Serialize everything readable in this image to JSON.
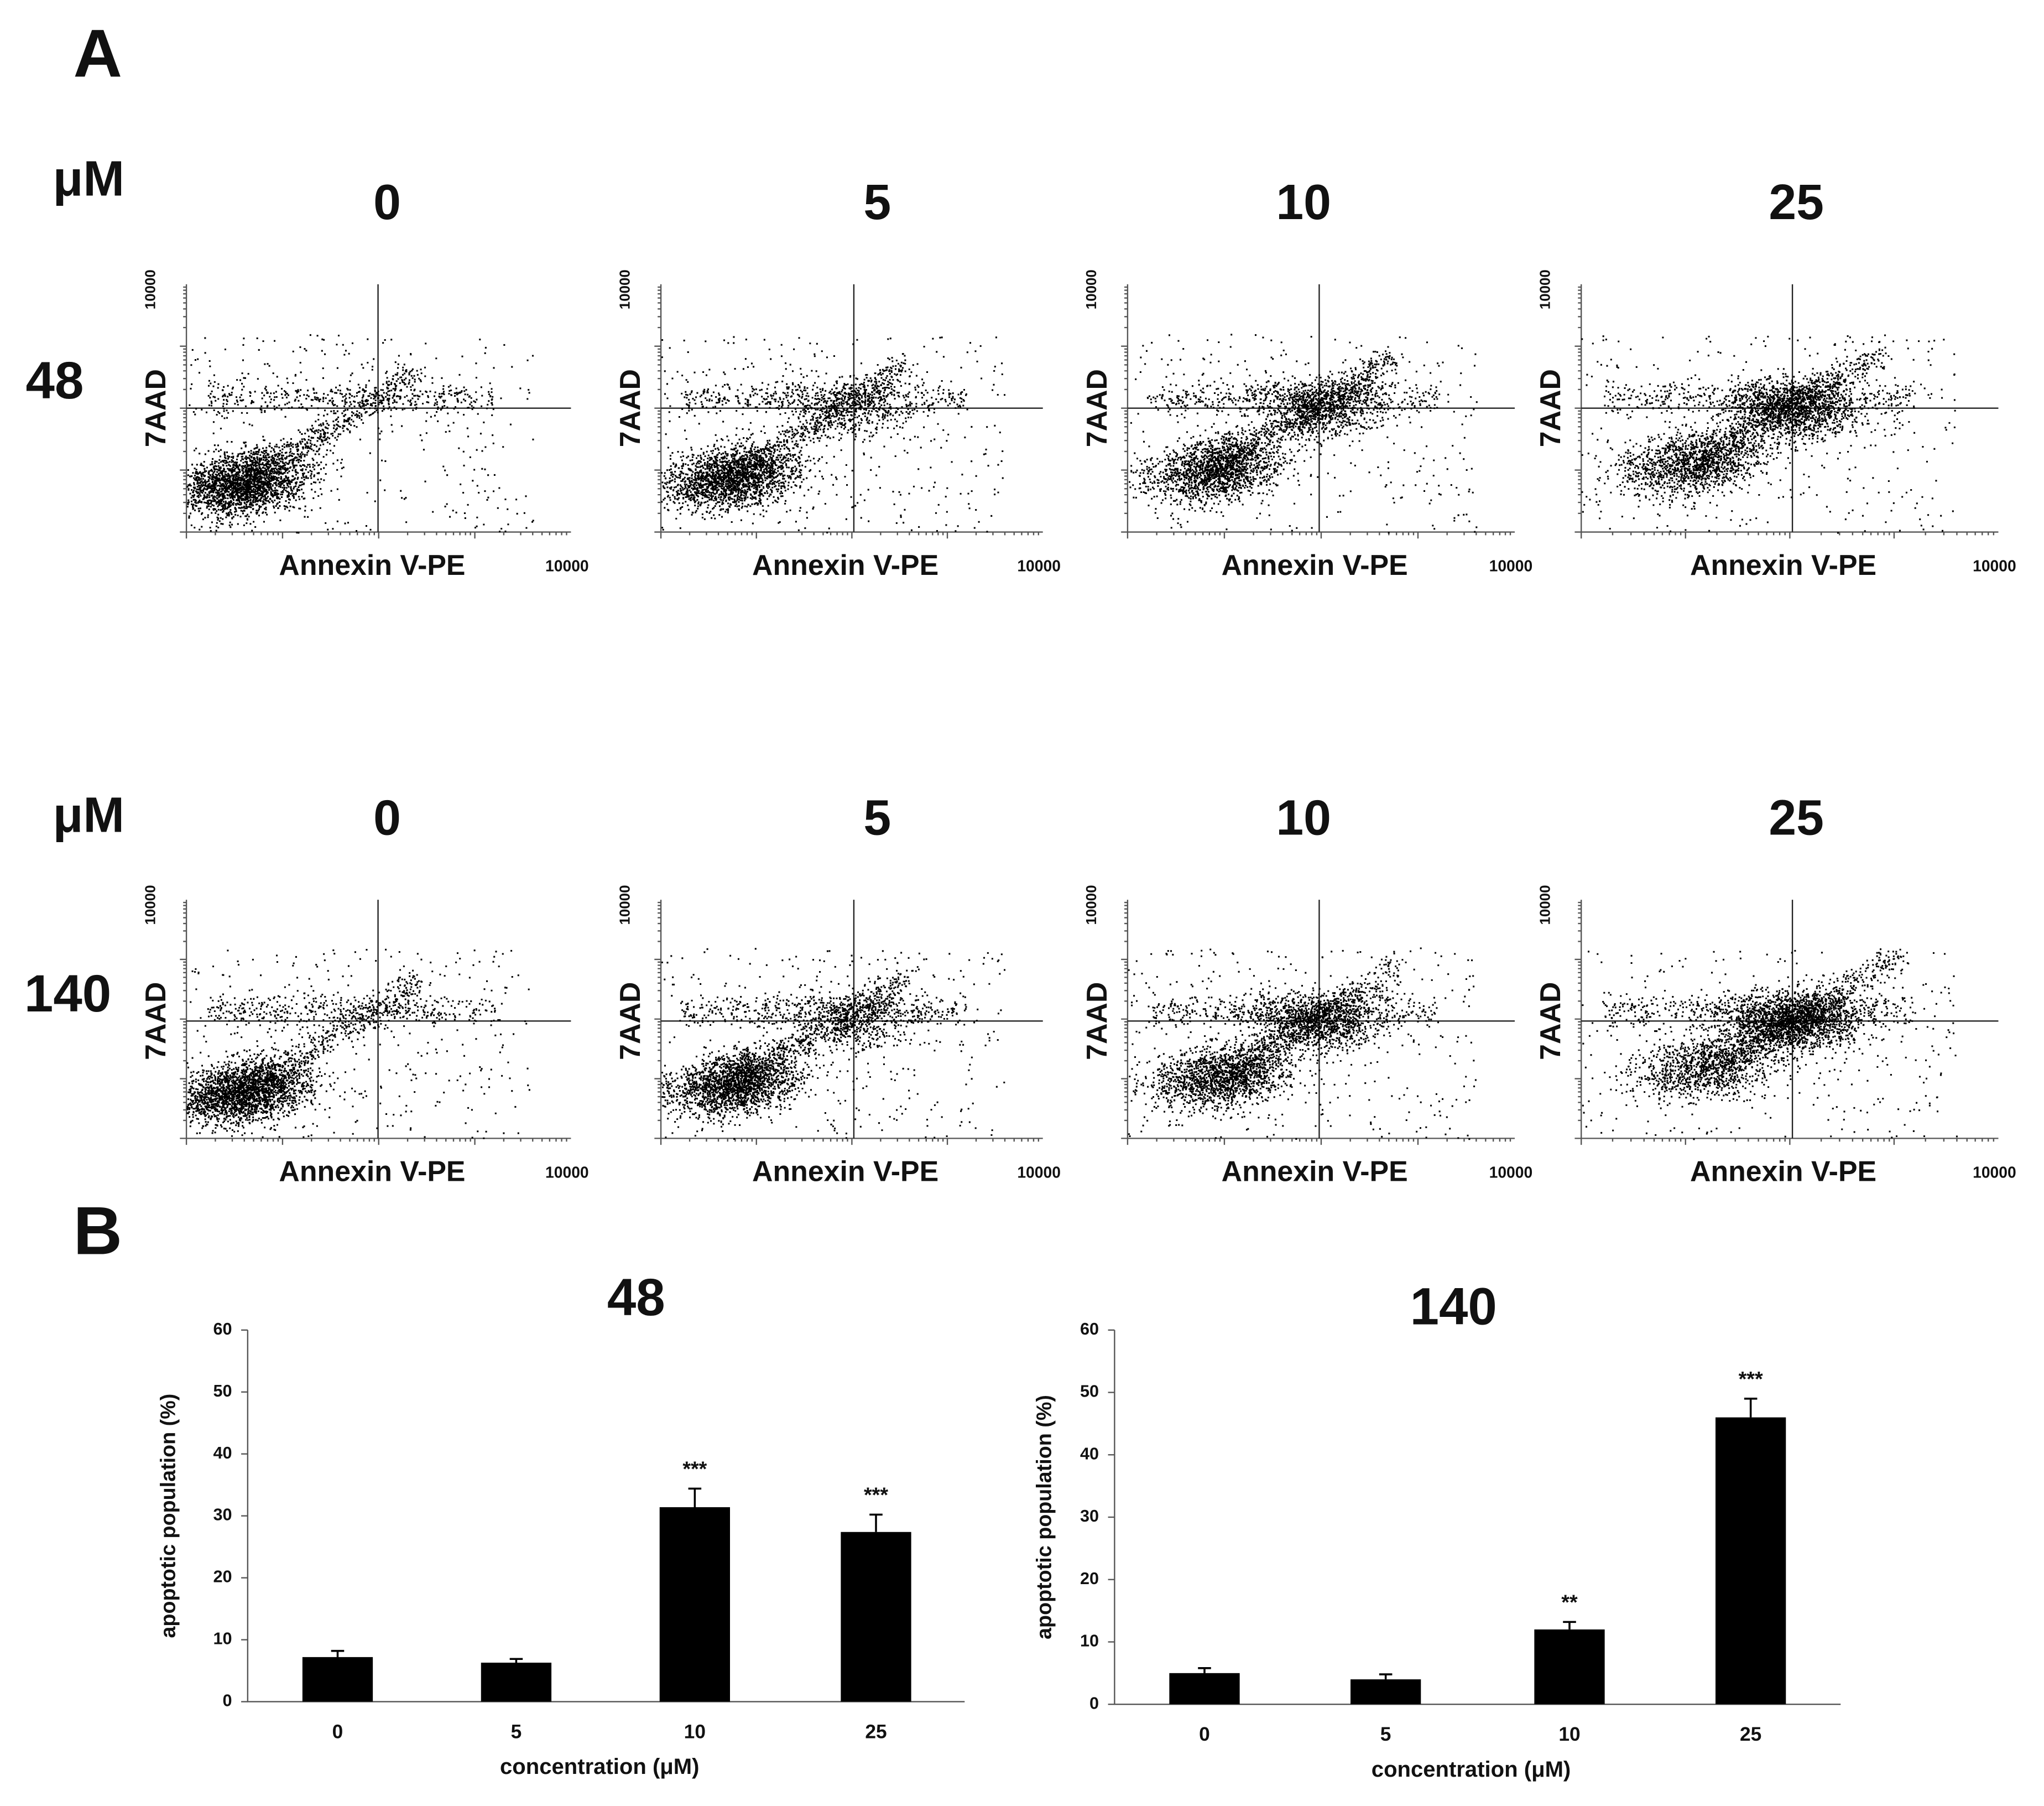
{
  "panel_labels": [
    "A",
    "B"
  ],
  "flow": {
    "unit": "μM",
    "concentrations": [
      "0",
      "5",
      "10",
      "25"
    ],
    "rows": [
      {
        "time": "48"
      },
      {
        "time": "140"
      }
    ],
    "ylabel": "7AAD",
    "xlabel": "Annexin V-PE",
    "axis_max_label": "10000"
  },
  "chart_data": [
    {
      "type": "bar",
      "title": "48",
      "categories": [
        "0",
        "5",
        "10",
        "25"
      ],
      "values": [
        7.2,
        6.3,
        31.4,
        27.4
      ],
      "errors": [
        1.0,
        0.6,
        3.0,
        2.8
      ],
      "significance": [
        null,
        null,
        "***",
        "***"
      ],
      "color": "#000000",
      "ylim": [
        0,
        60
      ],
      "yticks": [
        0,
        10,
        20,
        30,
        40,
        50,
        60
      ],
      "ylabel": "apoptotic population (%)",
      "xlabel": "concentration (μM)"
    },
    {
      "type": "bar",
      "title": "140",
      "categories": [
        "0",
        "5",
        "10",
        "25"
      ],
      "values": [
        5.0,
        4.0,
        12.0,
        46.0
      ],
      "errors": [
        0.8,
        0.8,
        1.2,
        3.0
      ],
      "significance": [
        null,
        null,
        "**",
        "***"
      ],
      "color": "#000000",
      "ylim": [
        0,
        60
      ],
      "yticks": [
        0,
        10,
        20,
        30,
        40,
        50,
        60
      ],
      "ylabel": "apoptotic population (%)",
      "xlabel": "concentration (μM)"
    }
  ]
}
